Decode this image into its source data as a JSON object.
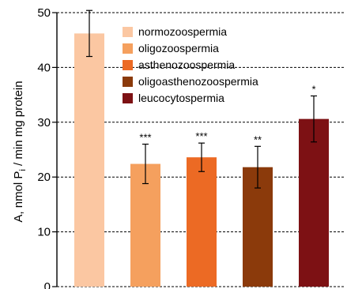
{
  "chart_data": {
    "type": "bar",
    "ylabel": "A, nmol Pᵢ / min mg protein",
    "ylim": [
      0,
      50
    ],
    "yticks": [
      0,
      10,
      20,
      30,
      40,
      50
    ],
    "grid": true,
    "legend_position": "top-right",
    "categories": [
      "normozoospermia",
      "oligozoospermia",
      "asthenozoospermia",
      "oligoasthenozoospermia",
      "leucocytospermia"
    ],
    "values": [
      46.2,
      22.4,
      23.6,
      21.8,
      30.6
    ],
    "errors": [
      4.2,
      3.6,
      2.6,
      3.8,
      4.2
    ],
    "significance": [
      "",
      "***",
      "***",
      "**",
      "*"
    ],
    "colors": [
      "#FBC7A2",
      "#F5A05E",
      "#EC6A24",
      "#8B3A0B",
      "#7D1114"
    ]
  }
}
